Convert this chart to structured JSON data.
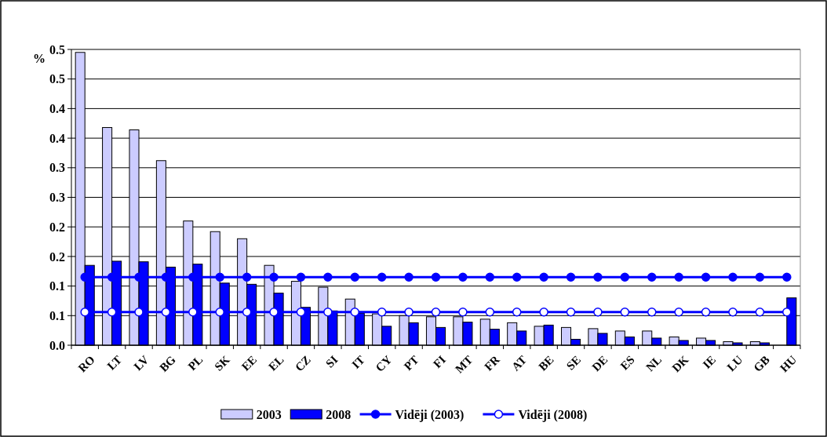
{
  "chart_data": {
    "type": "bar",
    "ylabel": "%",
    "categories": [
      "RO",
      "LT",
      "LV",
      "BG",
      "PL",
      "SK",
      "EE",
      "EL",
      "CZ",
      "SI",
      "IT",
      "CY",
      "PT",
      "FI",
      "MT",
      "FR",
      "AT",
      "BE",
      "SE",
      "DE",
      "ES",
      "NL",
      "DK",
      "IE",
      "LU",
      "GB",
      "HU"
    ],
    "series": [
      {
        "name": "2003",
        "color": "#ccccff",
        "values": [
          0.495,
          0.368,
          0.364,
          0.312,
          0.21,
          0.192,
          0.18,
          0.135,
          0.108,
          0.098,
          0.078,
          0.053,
          0.05,
          0.048,
          0.048,
          0.044,
          0.038,
          0.032,
          0.03,
          0.028,
          0.024,
          0.024,
          0.014,
          0.012,
          0.006,
          0.006,
          null
        ]
      },
      {
        "name": "2008",
        "color": "#0000ff",
        "values": [
          0.135,
          0.142,
          0.141,
          0.132,
          0.137,
          0.105,
          0.103,
          0.088,
          0.064,
          0.058,
          0.054,
          0.032,
          0.038,
          0.03,
          0.039,
          0.027,
          0.024,
          0.034,
          0.01,
          0.02,
          0.014,
          0.012,
          0.008,
          0.008,
          0.004,
          0.004,
          0.08
        ]
      },
      {
        "name": "Vidēji (2003)",
        "type": "line",
        "color": "#0000ff",
        "marker": "circle",
        "values": [
          0.115,
          0.115,
          0.115,
          0.115,
          0.115,
          0.115,
          0.115,
          0.115,
          0.115,
          0.115,
          0.115,
          0.115,
          0.115,
          0.115,
          0.115,
          0.115,
          0.115,
          0.115,
          0.115,
          0.115,
          0.115,
          0.115,
          0.115,
          0.115,
          0.115,
          0.115,
          0.115
        ]
      },
      {
        "name": "Vidēji (2008)",
        "type": "line",
        "color": "#0000ff",
        "marker": "circle",
        "values": [
          0.056,
          0.056,
          0.056,
          0.056,
          0.056,
          0.056,
          0.056,
          0.056,
          0.056,
          0.056,
          0.056,
          0.056,
          0.056,
          0.056,
          0.056,
          0.056,
          0.056,
          0.056,
          0.056,
          0.056,
          0.056,
          0.056,
          0.056,
          0.056,
          0.056,
          0.056,
          0.056
        ]
      }
    ],
    "ylim": [
      0,
      0.5
    ],
    "yticks": [
      {
        "value": 0,
        "label": "0.0"
      },
      {
        "value": 0.05,
        "label": "0.1"
      },
      {
        "value": 0.1,
        "label": "0.1"
      },
      {
        "value": 0.15,
        "label": "0.2"
      },
      {
        "value": 0.2,
        "label": "0.2"
      },
      {
        "value": 0.25,
        "label": "0.3"
      },
      {
        "value": 0.3,
        "label": "0.3"
      },
      {
        "value": 0.35,
        "label": "0.4"
      },
      {
        "value": 0.4,
        "label": "0.4"
      },
      {
        "value": 0.45,
        "label": "0.5"
      },
      {
        "value": 0.5,
        "label": "0.5"
      }
    ],
    "grid": "y",
    "legend": "bottom"
  }
}
